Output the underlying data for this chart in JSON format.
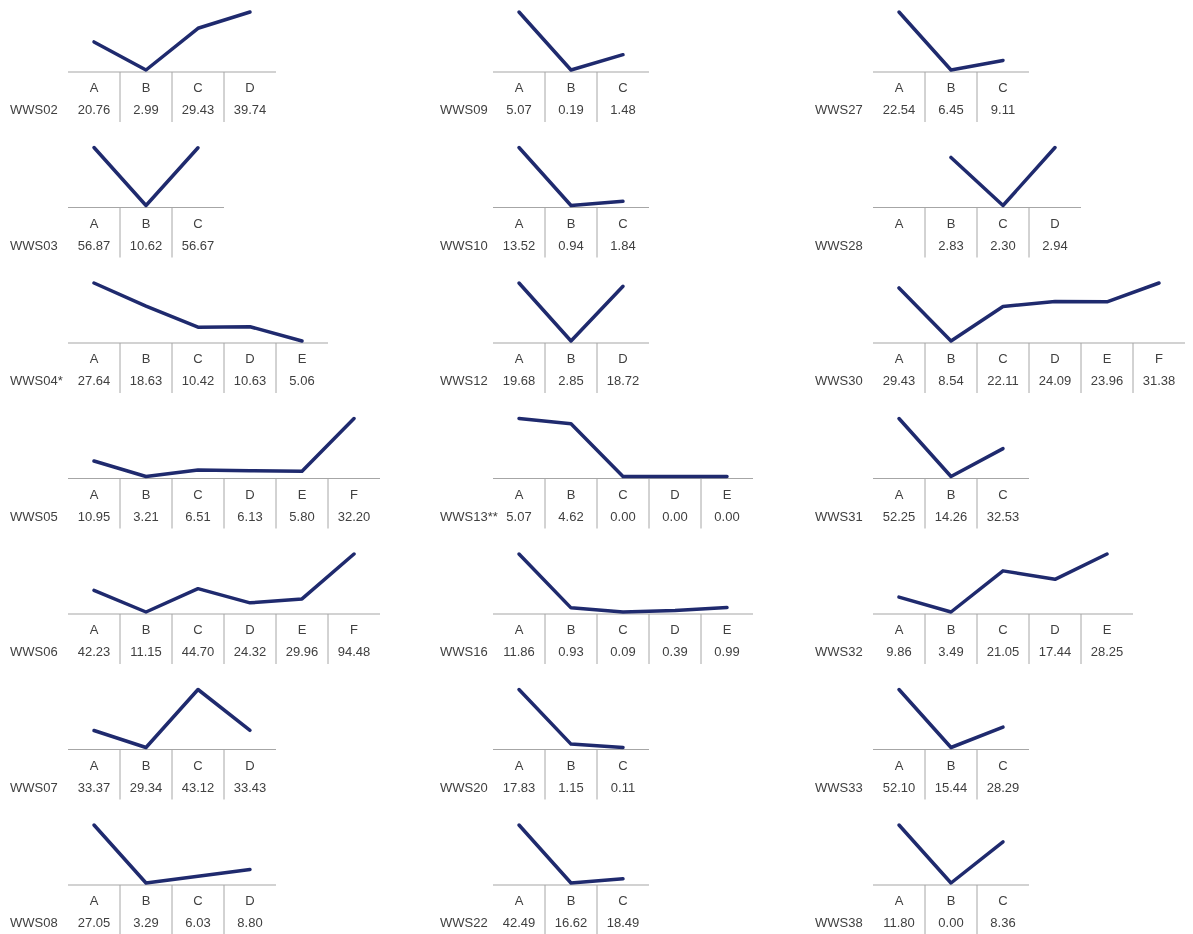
{
  "chart_data": [
    {
      "type": "line",
      "categories": [
        "A",
        "B",
        "C",
        "D"
      ],
      "series": [
        {
          "name": "WWS02",
          "color": "#1f2a6e",
          "values": [
            20.76,
            2.99,
            29.43,
            39.74
          ],
          "value_labels": [
            "20.76",
            "2.99",
            "29.43",
            "39.74"
          ]
        }
      ]
    },
    {
      "type": "line",
      "categories": [
        "A",
        "B",
        "C"
      ],
      "series": [
        {
          "name": "WWS09",
          "color": "#1f2a6e",
          "values": [
            5.07,
            0.19,
            1.48
          ],
          "value_labels": [
            "5.07",
            "0.19",
            "1.48"
          ]
        }
      ]
    },
    {
      "type": "line",
      "categories": [
        "A",
        "B",
        "C"
      ],
      "series": [
        {
          "name": "WWS27",
          "color": "#1f2a6e",
          "values": [
            22.54,
            6.45,
            9.11
          ],
          "value_labels": [
            "22.54",
            "6.45",
            "9.11"
          ]
        }
      ]
    },
    {
      "type": "line",
      "categories": [
        "A",
        "B",
        "C"
      ],
      "series": [
        {
          "name": "WWS03",
          "color": "#1f2a6e",
          "values": [
            56.87,
            10.62,
            56.67
          ],
          "value_labels": [
            "56.87",
            "10.62",
            "56.67"
          ]
        }
      ]
    },
    {
      "type": "line",
      "categories": [
        "A",
        "B",
        "C"
      ],
      "series": [
        {
          "name": "WWS10",
          "color": "#1f2a6e",
          "values": [
            13.52,
            0.94,
            1.84
          ],
          "value_labels": [
            "13.52",
            "0.94",
            "1.84"
          ]
        }
      ]
    },
    {
      "type": "line",
      "categories": [
        "A",
        "B",
        "C",
        "D"
      ],
      "series": [
        {
          "name": "WWS28",
          "color": "#1f2a6e",
          "values": [
            null,
            2.83,
            2.3,
            2.94
          ],
          "value_labels": [
            null,
            "2.83",
            "2.30",
            "2.94"
          ]
        }
      ]
    },
    {
      "type": "line",
      "categories": [
        "A",
        "B",
        "C",
        "D",
        "E"
      ],
      "series": [
        {
          "name": "WWS04*",
          "color": "#1f2a6e",
          "values": [
            27.64,
            18.63,
            10.42,
            10.63,
            5.06
          ],
          "value_labels": [
            "27.64",
            "18.63",
            "10.42",
            "10.63",
            "5.06"
          ]
        }
      ]
    },
    {
      "type": "line",
      "categories": [
        "A",
        "B",
        "D"
      ],
      "series": [
        {
          "name": "WWS12",
          "color": "#1f2a6e",
          "values": [
            19.68,
            2.85,
            18.72
          ],
          "value_labels": [
            "19.68",
            "2.85",
            "18.72"
          ]
        }
      ]
    },
    {
      "type": "line",
      "categories": [
        "A",
        "B",
        "C",
        "D",
        "E",
        "F"
      ],
      "series": [
        {
          "name": "WWS30",
          "color": "#1f2a6e",
          "values": [
            29.43,
            8.54,
            22.11,
            24.09,
            23.96,
            31.38
          ],
          "value_labels": [
            "29.43",
            "8.54",
            "22.11",
            "24.09",
            "23.96",
            "31.38"
          ]
        }
      ]
    },
    {
      "type": "line",
      "categories": [
        "A",
        "B",
        "C",
        "D",
        "E",
        "F"
      ],
      "series": [
        {
          "name": "WWS05",
          "color": "#1f2a6e",
          "values": [
            10.95,
            3.21,
            6.51,
            6.13,
            5.8,
            32.2
          ],
          "value_labels": [
            "10.95",
            "3.21",
            "6.51",
            "6.13",
            "5.80",
            "32.20"
          ]
        }
      ]
    },
    {
      "type": "line",
      "categories": [
        "A",
        "B",
        "C",
        "D",
        "E"
      ],
      "series": [
        {
          "name": "WWS13**",
          "color": "#1f2a6e",
          "values": [
            5.07,
            4.62,
            0.0,
            0.0,
            0.0
          ],
          "value_labels": [
            "5.07",
            "4.62",
            "0.00",
            "0.00",
            "0.00"
          ]
        }
      ]
    },
    {
      "type": "line",
      "categories": [
        "A",
        "B",
        "C"
      ],
      "series": [
        {
          "name": "WWS31",
          "color": "#1f2a6e",
          "values": [
            52.25,
            14.26,
            32.53
          ],
          "value_labels": [
            "52.25",
            "14.26",
            "32.53"
          ]
        }
      ]
    },
    {
      "type": "line",
      "categories": [
        "A",
        "B",
        "C",
        "D",
        "E",
        "F"
      ],
      "series": [
        {
          "name": "WWS06",
          "color": "#1f2a6e",
          "values": [
            42.23,
            11.15,
            44.7,
            24.32,
            29.96,
            94.48
          ],
          "value_labels": [
            "42.23",
            "11.15",
            "44.70",
            "24.32",
            "29.96",
            "94.48"
          ]
        }
      ]
    },
    {
      "type": "line",
      "categories": [
        "A",
        "B",
        "C",
        "D",
        "E"
      ],
      "series": [
        {
          "name": "WWS16",
          "color": "#1f2a6e",
          "values": [
            11.86,
            0.93,
            0.09,
            0.39,
            0.99
          ],
          "value_labels": [
            "11.86",
            "0.93",
            "0.09",
            "0.39",
            "0.99"
          ]
        }
      ]
    },
    {
      "type": "line",
      "categories": [
        "A",
        "B",
        "C",
        "D",
        "E"
      ],
      "series": [
        {
          "name": "WWS32",
          "color": "#1f2a6e",
          "values": [
            9.86,
            3.49,
            21.05,
            17.44,
            28.25
          ],
          "value_labels": [
            "9.86",
            "3.49",
            "21.05",
            "17.44",
            "28.25"
          ]
        }
      ]
    },
    {
      "type": "line",
      "categories": [
        "A",
        "B",
        "C",
        "D"
      ],
      "series": [
        {
          "name": "WWS07",
          "color": "#1f2a6e",
          "values": [
            33.37,
            29.34,
            43.12,
            33.43
          ],
          "value_labels": [
            "33.37",
            "29.34",
            "43.12",
            "33.43"
          ]
        }
      ]
    },
    {
      "type": "line",
      "categories": [
        "A",
        "B",
        "C"
      ],
      "series": [
        {
          "name": "WWS20",
          "color": "#1f2a6e",
          "values": [
            17.83,
            1.15,
            0.11
          ],
          "value_labels": [
            "17.83",
            "1.15",
            "0.11"
          ]
        }
      ]
    },
    {
      "type": "line",
      "categories": [
        "A",
        "B",
        "C"
      ],
      "series": [
        {
          "name": "WWS33",
          "color": "#1f2a6e",
          "values": [
            52.1,
            15.44,
            28.29
          ],
          "value_labels": [
            "52.10",
            "15.44",
            "28.29"
          ]
        }
      ]
    },
    {
      "type": "line",
      "categories": [
        "A",
        "B",
        "C",
        "D"
      ],
      "series": [
        {
          "name": "WWS08",
          "color": "#1f2a6e",
          "values": [
            27.05,
            3.29,
            6.03,
            8.8
          ],
          "value_labels": [
            "27.05",
            "3.29",
            "6.03",
            "8.80"
          ]
        }
      ]
    },
    {
      "type": "line",
      "categories": [
        "A",
        "B",
        "C"
      ],
      "series": [
        {
          "name": "WWS22",
          "color": "#1f2a6e",
          "values": [
            42.49,
            16.62,
            18.49
          ],
          "value_labels": [
            "42.49",
            "16.62",
            "18.49"
          ]
        }
      ]
    },
    {
      "type": "line",
      "categories": [
        "A",
        "B",
        "C"
      ],
      "series": [
        {
          "name": "WWS38",
          "color": "#1f2a6e",
          "values": [
            11.8,
            0.0,
            8.36
          ],
          "value_labels": [
            "11.80",
            "0.00",
            "8.36"
          ]
        }
      ]
    }
  ]
}
